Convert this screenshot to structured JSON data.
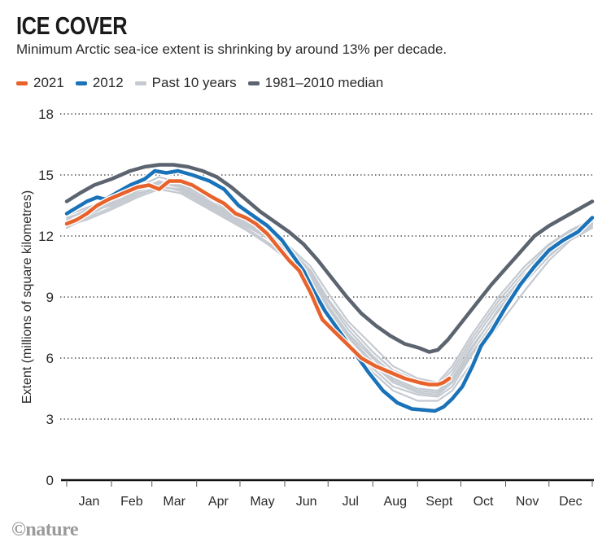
{
  "header": {
    "title": "ICE COVER",
    "subtitle": "Minimum Arctic sea-ice extent is shrinking by around 13% per decade."
  },
  "legend": [
    {
      "label": "2021",
      "color": "#e8622c"
    },
    {
      "label": "2012",
      "color": "#1a72b8"
    },
    {
      "label": "Past 10 years",
      "color": "#c5cad1"
    },
    {
      "label": "1981–2010 median",
      "color": "#5c6470"
    }
  ],
  "footer": {
    "logo": "©nature"
  },
  "chart_data": {
    "type": "line",
    "title": "ICE COVER",
    "subtitle": "Minimum Arctic sea-ice extent is shrinking by around 13% per decade.",
    "xlabel": "",
    "ylabel": "Extent (millions of square kilometres)",
    "ylim": [
      0,
      18
    ],
    "yticks": [
      0,
      3,
      6,
      9,
      12,
      15,
      18
    ],
    "xlim": [
      1,
      365
    ],
    "x_unit": "day of year",
    "month_labels": [
      "Jan",
      "Feb",
      "Mar",
      "Apr",
      "May",
      "Jun",
      "Jul",
      "Aug",
      "Sept",
      "Oct",
      "Nov",
      "Dec"
    ],
    "grid": "horizontal dotted",
    "legend_position": "top-left",
    "series": [
      {
        "name": "Past 10 years",
        "color": "#c5cad1",
        "lines": [
          {
            "x": [
              1,
              15,
              32,
              50,
              65,
              80,
              95,
              110,
              125,
              140,
              155,
              170,
              182,
              196,
              213,
              227,
              244,
              258,
              268,
              282,
              300,
              318,
              335,
              350,
              365
            ],
            "y": [
              12.4,
              12.9,
              13.4,
              14.0,
              14.4,
              14.3,
              13.8,
              13.2,
              12.6,
              12.0,
              11.3,
              10.2,
              8.8,
              7.4,
              6.1,
              5.2,
              4.7,
              4.6,
              5.2,
              6.8,
              8.6,
              10.1,
              11.3,
              12.0,
              12.6
            ]
          },
          {
            "x": [
              1,
              15,
              32,
              50,
              65,
              80,
              95,
              110,
              125,
              140,
              155,
              170,
              182,
              196,
              213,
              227,
              244,
              258,
              268,
              282,
              300,
              318,
              335,
              350,
              365
            ],
            "y": [
              12.8,
              13.3,
              13.9,
              14.5,
              14.6,
              14.5,
              14.0,
              13.5,
              12.9,
              12.3,
              11.5,
              10.5,
              9.2,
              7.8,
              6.6,
              5.6,
              5.0,
              4.8,
              5.6,
              7.2,
              9.0,
              10.5,
              11.6,
              12.3,
              12.8
            ]
          },
          {
            "x": [
              1,
              15,
              32,
              50,
              65,
              80,
              95,
              110,
              125,
              140,
              155,
              170,
              182,
              196,
              213,
              227,
              244,
              258,
              268,
              282,
              300,
              318,
              335,
              350,
              365
            ],
            "y": [
              12.6,
              13.0,
              13.6,
              14.2,
              14.7,
              14.4,
              13.9,
              13.3,
              12.7,
              12.0,
              11.2,
              10.0,
              8.5,
              7.1,
              5.8,
              4.9,
              4.4,
              4.3,
              4.9,
              6.5,
              8.4,
              10.0,
              11.4,
              12.1,
              12.7
            ]
          },
          {
            "x": [
              1,
              15,
              32,
              50,
              65,
              80,
              95,
              110,
              125,
              140,
              155,
              170,
              182,
              196,
              213,
              227,
              244,
              258,
              268,
              282,
              300,
              318,
              335,
              350,
              365
            ],
            "y": [
              13.0,
              13.4,
              13.8,
              14.3,
              14.5,
              14.2,
              13.6,
              13.0,
              12.4,
              11.7,
              10.9,
              9.8,
              8.3,
              6.8,
              5.5,
              4.6,
              4.2,
              4.1,
              4.6,
              6.2,
              8.0,
              9.8,
              11.1,
              12.0,
              12.5
            ]
          },
          {
            "x": [
              1,
              15,
              32,
              50,
              65,
              80,
              95,
              110,
              125,
              140,
              155,
              170,
              182,
              196,
              213,
              227,
              244,
              258,
              268,
              282,
              300,
              318,
              335,
              350,
              365
            ],
            "y": [
              12.7,
              13.1,
              13.7,
              14.4,
              14.9,
              14.6,
              14.1,
              13.4,
              12.8,
              12.2,
              11.4,
              10.3,
              8.9,
              7.6,
              6.3,
              5.4,
              4.9,
              4.7,
              5.4,
              7.0,
              8.8,
              10.3,
              11.5,
              12.2,
              12.7
            ]
          },
          {
            "x": [
              1,
              15,
              32,
              50,
              65,
              80,
              95,
              110,
              125,
              140,
              155,
              170,
              182,
              196,
              213,
              227,
              244,
              258,
              268,
              282,
              300,
              318,
              335,
              350,
              365
            ],
            "y": [
              12.5,
              12.8,
              13.3,
              13.9,
              14.3,
              14.1,
              13.5,
              12.9,
              12.3,
              11.6,
              10.8,
              9.6,
              8.1,
              6.6,
              5.3,
              4.4,
              3.9,
              3.9,
              4.4,
              5.8,
              7.6,
              9.3,
              10.8,
              11.8,
              12.4
            ]
          },
          {
            "x": [
              1,
              15,
              32,
              50,
              65,
              80,
              95,
              110,
              125,
              140,
              155,
              170,
              182,
              196,
              213,
              227,
              244,
              258,
              268,
              282,
              300,
              318,
              335,
              350,
              365
            ],
            "y": [
              12.9,
              13.2,
              13.5,
              14.1,
              14.4,
              14.3,
              13.7,
              13.1,
              12.5,
              11.9,
              11.1,
              10.1,
              8.6,
              7.2,
              6.0,
              5.0,
              4.5,
              4.4,
              5.0,
              6.6,
              8.3,
              9.7,
              11.0,
              11.9,
              12.5
            ]
          },
          {
            "x": [
              1,
              15,
              32,
              50,
              65,
              80,
              95,
              110,
              125,
              140,
              155,
              170,
              182,
              196,
              213,
              227,
              244,
              258,
              268,
              282,
              300,
              318,
              335,
              350,
              365
            ],
            "y": [
              12.6,
              13.0,
              13.6,
              14.2,
              14.6,
              14.4,
              13.8,
              13.2,
              12.6,
              11.9,
              11.0,
              9.9,
              8.4,
              7.0,
              5.7,
              4.8,
              4.3,
              4.2,
              4.8,
              6.3,
              8.1,
              9.9,
              11.2,
              12.0,
              12.6
            ]
          }
        ]
      },
      {
        "name": "1981–2010 median",
        "color": "#5c6470",
        "x": [
          1,
          10,
          20,
          32,
          45,
          55,
          65,
          75,
          85,
          95,
          105,
          115,
          125,
          135,
          145,
          155,
          165,
          175,
          185,
          195,
          205,
          215,
          225,
          235,
          245,
          252,
          258,
          265,
          275,
          285,
          295,
          305,
          315,
          325,
          335,
          345,
          355,
          365
        ],
        "y": [
          13.7,
          14.1,
          14.5,
          14.8,
          15.2,
          15.4,
          15.5,
          15.5,
          15.4,
          15.2,
          14.9,
          14.4,
          13.8,
          13.2,
          12.7,
          12.2,
          11.6,
          10.8,
          9.9,
          9.0,
          8.2,
          7.6,
          7.1,
          6.7,
          6.5,
          6.3,
          6.4,
          6.9,
          7.8,
          8.7,
          9.6,
          10.4,
          11.2,
          12.0,
          12.5,
          12.9,
          13.3,
          13.7
        ]
      },
      {
        "name": "2012",
        "color": "#1a72b8",
        "x": [
          1,
          8,
          15,
          22,
          28,
          35,
          45,
          55,
          62,
          70,
          78,
          88,
          100,
          110,
          120,
          130,
          140,
          150,
          158,
          165,
          172,
          180,
          190,
          200,
          210,
          220,
          230,
          240,
          248,
          256,
          262,
          268,
          275,
          282,
          288,
          295,
          305,
          315,
          325,
          335,
          345,
          355,
          365
        ],
        "y": [
          13.1,
          13.4,
          13.7,
          13.9,
          13.8,
          14.1,
          14.5,
          14.8,
          15.2,
          15.1,
          15.2,
          15.0,
          14.7,
          14.3,
          13.5,
          13.0,
          12.5,
          11.8,
          11.0,
          10.3,
          9.3,
          8.3,
          7.3,
          6.3,
          5.3,
          4.4,
          3.8,
          3.5,
          3.45,
          3.4,
          3.6,
          4.0,
          4.6,
          5.6,
          6.6,
          7.3,
          8.5,
          9.6,
          10.5,
          11.3,
          11.8,
          12.2,
          12.9
        ]
      },
      {
        "name": "2021",
        "color": "#e8622c",
        "x": [
          1,
          8,
          15,
          22,
          30,
          40,
          50,
          58,
          65,
          72,
          80,
          88,
          95,
          102,
          110,
          118,
          125,
          132,
          140,
          148,
          155,
          162,
          170,
          178,
          185,
          195,
          205,
          215,
          225,
          235,
          245,
          252,
          258,
          262,
          266
        ],
        "y": [
          12.6,
          12.8,
          13.1,
          13.5,
          13.8,
          14.1,
          14.4,
          14.5,
          14.3,
          14.7,
          14.7,
          14.5,
          14.2,
          13.9,
          13.6,
          13.1,
          12.9,
          12.6,
          12.1,
          11.4,
          10.8,
          10.3,
          9.2,
          7.9,
          7.4,
          6.7,
          6.0,
          5.6,
          5.3,
          5.0,
          4.8,
          4.7,
          4.7,
          4.8,
          5.0
        ]
      }
    ]
  }
}
